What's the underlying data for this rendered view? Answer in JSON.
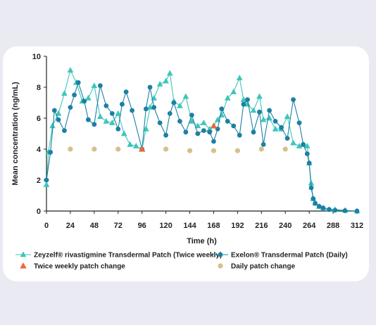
{
  "chart_data": {
    "type": "line",
    "xlabel": "Time (h)",
    "ylabel": "Mean concentration (ng/mL)",
    "xlim": [
      0,
      312
    ],
    "ylim": [
      0,
      10
    ],
    "xticks": [
      0,
      24,
      48,
      72,
      96,
      120,
      144,
      168,
      192,
      216,
      240,
      264,
      288,
      312
    ],
    "yticks": [
      0,
      2,
      4,
      6,
      8,
      10
    ],
    "grid": false,
    "legend_position": "bottom",
    "colors": {
      "zeyzelf": "#3cc6b9",
      "exelon": "#1d7fa3",
      "twice_weekly_change": "#e9693a",
      "daily_change": "#d8bf8c"
    },
    "series": [
      {
        "name": "Zeyzelf® rivastigmine Transdermal Patch (Twice weekly)",
        "marker": "triangle",
        "x": [
          0,
          2,
          6,
          12,
          18,
          24,
          30,
          36,
          42,
          48,
          54,
          60,
          66,
          72,
          78,
          84,
          90,
          96,
          100,
          104,
          108,
          114,
          120,
          124,
          128,
          134,
          140,
          146,
          152,
          158,
          164,
          168,
          172,
          176,
          182,
          188,
          194,
          198,
          202,
          208,
          214,
          218,
          224,
          230,
          236,
          242,
          248,
          254,
          258,
          262,
          264,
          266,
          268,
          270,
          274,
          278,
          284,
          290,
          300,
          312
        ],
        "y": [
          1.7,
          3.8,
          5.5,
          6.3,
          7.6,
          9.1,
          8.3,
          7.1,
          7.3,
          8.1,
          6.1,
          5.8,
          5.7,
          6.3,
          5.0,
          4.3,
          4.2,
          4.0,
          5.3,
          6.7,
          7.3,
          8.2,
          8.4,
          8.9,
          7.1,
          6.8,
          7.4,
          5.8,
          5.5,
          5.7,
          5.3,
          5.5,
          5.9,
          6.2,
          7.3,
          7.7,
          8.6,
          7.2,
          6.9,
          6.5,
          7.4,
          5.9,
          6.0,
          5.3,
          5.3,
          6.1,
          4.4,
          4.2,
          4.3,
          4.2,
          3.1,
          1.8,
          0.8,
          0.5,
          0.3,
          0.2,
          0.1,
          0.1,
          0.05,
          0.0
        ]
      },
      {
        "name": "Exelon® Transdermal Patch (Daily)",
        "marker": "circle",
        "x": [
          0,
          4,
          8,
          12,
          18,
          24,
          28,
          32,
          38,
          42,
          48,
          54,
          60,
          66,
          72,
          76,
          80,
          86,
          96,
          100,
          104,
          108,
          114,
          120,
          124,
          128,
          134,
          140,
          146,
          152,
          158,
          164,
          168,
          172,
          176,
          182,
          188,
          194,
          198,
          202,
          208,
          214,
          218,
          224,
          230,
          236,
          242,
          248,
          254,
          258,
          262,
          264,
          266,
          268,
          270,
          274,
          278,
          284,
          290,
          300,
          312
        ],
        "y": [
          2.0,
          3.8,
          6.5,
          5.9,
          5.2,
          6.7,
          7.5,
          8.3,
          7.1,
          5.9,
          5.6,
          8.1,
          6.8,
          6.3,
          5.3,
          6.9,
          7.7,
          6.5,
          4.0,
          6.6,
          8.0,
          6.7,
          5.7,
          4.9,
          6.3,
          7.0,
          5.8,
          5.1,
          6.2,
          5.0,
          5.2,
          5.1,
          4.5,
          5.3,
          6.6,
          5.8,
          5.5,
          4.9,
          6.9,
          7.2,
          5.1,
          6.4,
          4.3,
          6.5,
          5.8,
          5.4,
          4.7,
          7.2,
          5.7,
          4.3,
          3.7,
          3.1,
          1.5,
          0.8,
          0.5,
          0.3,
          0.2,
          0.1,
          0.05,
          0.02,
          0.0
        ]
      }
    ],
    "annotations": [
      {
        "name": "Twice weekly patch change",
        "marker": "triangle",
        "x": [
          96,
          168
        ],
        "y": [
          4.0,
          5.5
        ]
      },
      {
        "name": "Daily patch change",
        "marker": "circle",
        "x": [
          24,
          48,
          72,
          120,
          144,
          168,
          192,
          216,
          240
        ],
        "y": [
          4.0,
          4.0,
          4.0,
          4.0,
          3.9,
          3.9,
          3.9,
          4.0,
          4.0
        ]
      }
    ]
  }
}
